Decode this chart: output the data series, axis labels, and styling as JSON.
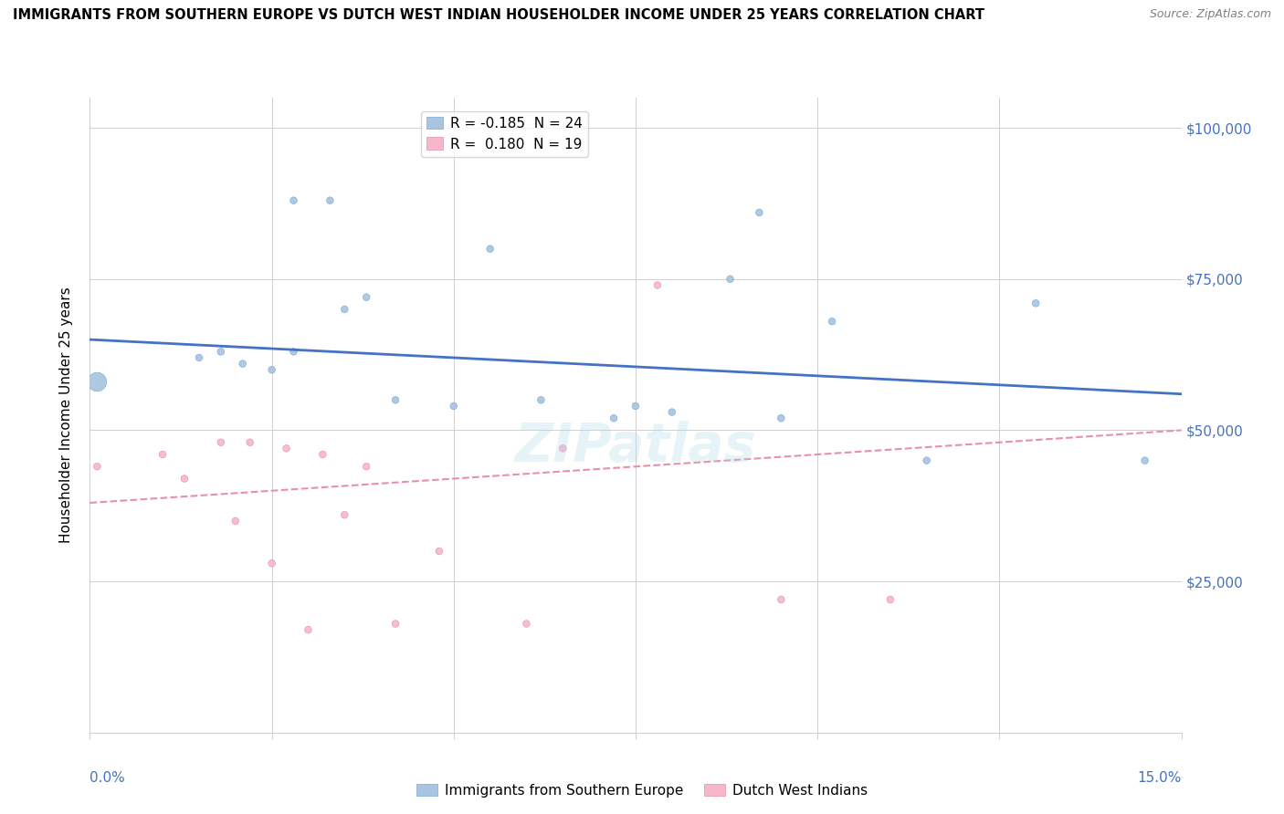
{
  "title": "IMMIGRANTS FROM SOUTHERN EUROPE VS DUTCH WEST INDIAN HOUSEHOLDER INCOME UNDER 25 YEARS CORRELATION CHART",
  "source": "Source: ZipAtlas.com",
  "ylabel": "Householder Income Under 25 years",
  "xlim": [
    0.0,
    0.15
  ],
  "ylim": [
    0,
    105000
  ],
  "yticks": [
    0,
    25000,
    50000,
    75000,
    100000
  ],
  "legend_entries": [
    {
      "label": "R = -0.185  N = 24",
      "color": "#a8c4e0"
    },
    {
      "label": "R =  0.180  N = 19",
      "color": "#f4b8c8"
    }
  ],
  "blue_scatter": {
    "x": [
      0.001,
      0.015,
      0.018,
      0.021,
      0.025,
      0.028,
      0.028,
      0.033,
      0.035,
      0.038,
      0.042,
      0.05,
      0.055,
      0.062,
      0.072,
      0.075,
      0.08,
      0.088,
      0.092,
      0.095,
      0.102,
      0.115,
      0.13,
      0.145
    ],
    "y": [
      58000,
      62000,
      63000,
      61000,
      60000,
      63000,
      88000,
      88000,
      70000,
      72000,
      55000,
      54000,
      80000,
      55000,
      52000,
      54000,
      53000,
      75000,
      86000,
      52000,
      68000,
      45000,
      71000,
      45000
    ],
    "size": [
      220,
      30,
      30,
      30,
      30,
      30,
      30,
      30,
      30,
      30,
      30,
      30,
      30,
      30,
      30,
      30,
      30,
      30,
      30,
      30,
      30,
      30,
      30,
      30
    ],
    "color": "#a8c4e0",
    "edgecolor": "#7aaad0"
  },
  "pink_scatter": {
    "x": [
      0.001,
      0.01,
      0.013,
      0.018,
      0.02,
      0.022,
      0.025,
      0.027,
      0.03,
      0.032,
      0.035,
      0.038,
      0.042,
      0.048,
      0.06,
      0.065,
      0.078,
      0.095,
      0.11
    ],
    "y": [
      44000,
      46000,
      42000,
      48000,
      35000,
      48000,
      28000,
      47000,
      17000,
      46000,
      36000,
      44000,
      18000,
      30000,
      18000,
      47000,
      74000,
      22000,
      22000
    ],
    "size": [
      30,
      30,
      30,
      30,
      30,
      30,
      30,
      30,
      30,
      30,
      30,
      30,
      30,
      30,
      30,
      30,
      30,
      30,
      30
    ],
    "color": "#f4b8c8",
    "edgecolor": "#e890a8"
  },
  "blue_line": {
    "x": [
      0.0,
      0.15
    ],
    "slope": -60000,
    "intercept": 65000,
    "color": "#4472c4",
    "linewidth": 2.0
  },
  "pink_line": {
    "x": [
      0.0,
      0.15
    ],
    "slope": 80000,
    "intercept": 38000,
    "color": "#e890a8",
    "linewidth": 1.5,
    "linestyle": "--"
  },
  "watermark": "ZIPatlas",
  "background_color": "#ffffff",
  "grid_color": "#d0d0d0"
}
